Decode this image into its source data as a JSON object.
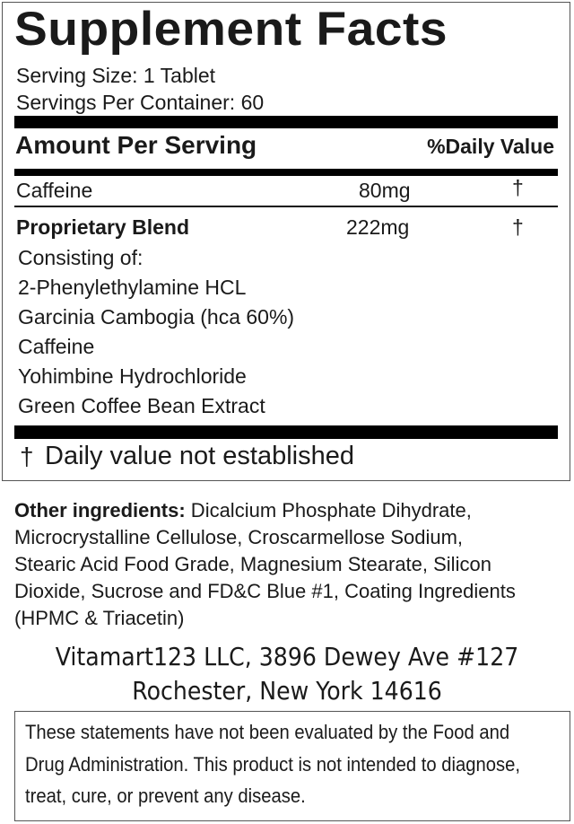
{
  "title": "Supplement Facts",
  "serving_size": "Serving Size: 1 Tablet",
  "servings_per_container": "Servings Per Container: 60",
  "header": {
    "amount": "Amount Per Serving",
    "daily_value": "%Daily Value"
  },
  "rows": [
    {
      "name": "Caffeine",
      "amount": "80mg",
      "dv": "†"
    },
    {
      "name": "Proprietary Blend",
      "amount": "222mg",
      "dv": "†"
    }
  ],
  "blend_components": [
    "Consisting of:",
    "2-Phenylethylamine HCL",
    "Garcinia Cambogia (hca 60%)",
    "Caffeine",
    "Yohimbine Hydrochloride",
    "Green Coffee Bean Extract"
  ],
  "footnote": {
    "symbol": "†",
    "text": "Daily value not established"
  },
  "other_ingredients": {
    "label": "Other ingredients:",
    "lines": [
      " Dicalcium Phosphate Dihydrate,",
      "Microcrystalline Cellulose, Croscarmellose Sodium,",
      "Stearic Acid Food Grade, Magnesium Stearate, Silicon",
      "Dioxide, Sucrose and FD&C Blue #1, Coating Ingredients",
      "(HPMC & Triacetin)"
    ]
  },
  "address": [
    "Vitamart123 LLC, 3896 Dewey Ave #127",
    "Rochester, New York 14616"
  ],
  "disclaimer": [
    "These statements have not been evaluated by the Food and",
    "Drug Administration. This product is not intended to diagnose,",
    "treat, cure, or prevent any disease."
  ]
}
